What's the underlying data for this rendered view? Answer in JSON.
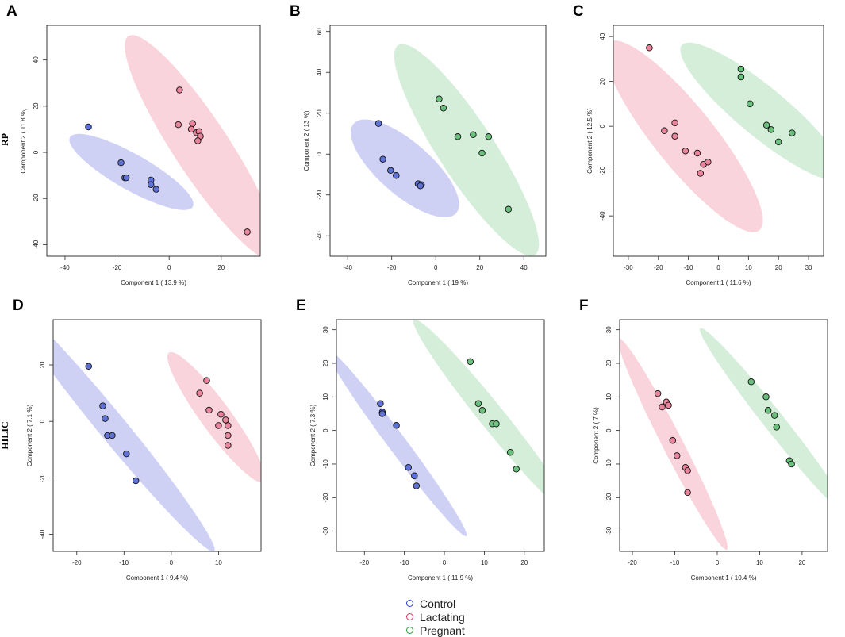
{
  "figure": {
    "row_labels": [
      "RP",
      "HILIC"
    ],
    "legend": [
      {
        "label": "Control",
        "color": "#2f3fd6"
      },
      {
        "label": "Lactating",
        "color": "#e0345e"
      },
      {
        "label": "Pregnant",
        "color": "#2e9e3e"
      }
    ],
    "colors": {
      "control_fill": "#5f73d6",
      "control_ellipse": "#c5c9f2",
      "lactating_fill": "#e8849b",
      "lactating_ellipse": "#f9ccd6",
      "pregnant_fill": "#6cc07d",
      "pregnant_ellipse": "#cdebd2"
    }
  },
  "chart_data": [
    {
      "panel": "A",
      "type": "scatter",
      "xlabel": "Component 1 ( 13.9 %)",
      "ylabel": "Component 2 ( 11.8 %)",
      "xlim": [
        -47,
        35
      ],
      "ylim": [
        -45,
        55
      ],
      "xticks": [
        -40,
        -20,
        0,
        20
      ],
      "yticks": [
        -40,
        -20,
        0,
        20,
        40
      ],
      "series": [
        {
          "name": "Control",
          "ellipse": {
            "a": 28,
            "b": 7.5,
            "angle": -33,
            "cx": -14.5,
            "cy": -8.5
          },
          "points": [
            [
              -31,
              11
            ],
            [
              -18.5,
              -4.5
            ],
            [
              -17,
              -11
            ],
            [
              -16.5,
              -11
            ],
            [
              -7,
              -12
            ],
            [
              -7,
              -14
            ],
            [
              -5,
              -16
            ]
          ]
        },
        {
          "name": "Lactating",
          "ellipse": {
            "a": 56,
            "b": 11,
            "angle": -60,
            "cx": 12.5,
            "cy": 2
          },
          "points": [
            [
              4,
              27
            ],
            [
              3.5,
              12
            ],
            [
              9,
              12.5
            ],
            [
              8.5,
              10
            ],
            [
              10.5,
              8.5
            ],
            [
              11.5,
              9
            ],
            [
              12,
              7
            ],
            [
              11,
              5
            ],
            [
              30,
              -34.5
            ]
          ]
        }
      ]
    },
    {
      "panel": "B",
      "type": "scatter",
      "xlabel": "Component 1 ( 19 %)",
      "ylabel": "Component 2 ( 13 %)",
      "xlim": [
        -48,
        50
      ],
      "ylim": [
        -50,
        63
      ],
      "xticks": [
        -40,
        -20,
        0,
        20,
        40
      ],
      "yticks": [
        -40,
        -20,
        0,
        20,
        40,
        60
      ],
      "series": [
        {
          "name": "Control",
          "ellipse": {
            "a": 32,
            "b": 12.5,
            "angle": -44,
            "cx": -14,
            "cy": -7
          },
          "points": [
            [
              -26,
              15
            ],
            [
              -24,
              -2.5
            ],
            [
              -20.5,
              -8
            ],
            [
              -18,
              -10.5
            ],
            [
              -8,
              -14.5
            ],
            [
              -6.5,
              -15
            ],
            [
              -7,
              -15.5
            ]
          ]
        },
        {
          "name": "Pregnant",
          "ellipse": {
            "a": 60,
            "b": 13,
            "angle": -59,
            "cx": 14,
            "cy": 2
          },
          "points": [
            [
              1.5,
              27
            ],
            [
              3.5,
              22.5
            ],
            [
              10,
              8.5
            ],
            [
              17,
              9.5
            ],
            [
              24,
              8.5
            ],
            [
              21,
              0.5
            ],
            [
              33,
              -27
            ]
          ]
        }
      ]
    },
    {
      "panel": "C",
      "type": "scatter",
      "xlabel": "Component 1 ( 11.6 %)",
      "ylabel": "Component 2 ( 12.5 %)",
      "xlim": [
        -35,
        35
      ],
      "ylim": [
        -58,
        45
      ],
      "xticks": [
        -30,
        -20,
        -10,
        0,
        10,
        20,
        30
      ],
      "yticks": [
        -40,
        -20,
        0,
        20,
        40
      ],
      "series": [
        {
          "name": "Lactating",
          "ellipse": {
            "a": 49,
            "b": 11,
            "angle": -60,
            "cx": -11.5,
            "cy": -4.5
          },
          "points": [
            [
              -23,
              35
            ],
            [
              -18,
              -2
            ],
            [
              -14.5,
              1.5
            ],
            [
              -14.5,
              -4.5
            ],
            [
              -11,
              -11
            ],
            [
              -7,
              -12
            ],
            [
              -5,
              -17
            ],
            [
              -3.5,
              -16
            ],
            [
              -6,
              -21
            ]
          ]
        },
        {
          "name": "Pregnant",
          "ellipse": {
            "a": 40,
            "b": 9.5,
            "angle": -49,
            "cx": 14.5,
            "cy": 6.5
          },
          "points": [
            [
              7.5,
              25.5
            ],
            [
              7.5,
              22
            ],
            [
              10.5,
              10
            ],
            [
              16,
              0.5
            ],
            [
              17.5,
              -1.5
            ],
            [
              24.5,
              -3
            ],
            [
              20,
              -7
            ]
          ]
        }
      ]
    },
    {
      "panel": "D",
      "type": "scatter",
      "xlabel": "Component 1 ( 9.4 %)",
      "ylabel": "Component 2 ( 7.1 %)",
      "xlim": [
        -25,
        19
      ],
      "ylim": [
        -46,
        36
      ],
      "xticks": [
        -20,
        -10,
        0,
        10
      ],
      "yticks": [
        -40,
        -20,
        0,
        20
      ],
      "series": [
        {
          "name": "Control",
          "ellipse": {
            "a": 49,
            "b": 3.4,
            "angle": -64,
            "cx": -12.5,
            "cy": -2
          },
          "points": [
            [
              -17.5,
              19.5
            ],
            [
              -14.5,
              5.5
            ],
            [
              -14,
              1
            ],
            [
              -13.5,
              -5
            ],
            [
              -12.5,
              -5
            ],
            [
              -9.5,
              -11.5
            ],
            [
              -7.5,
              -21
            ]
          ]
        },
        {
          "name": "Lactating",
          "ellipse": {
            "a": 25,
            "b": 3.6,
            "angle": -67,
            "cx": 9.5,
            "cy": 1.5
          },
          "points": [
            [
              7.5,
              14.5
            ],
            [
              6,
              10
            ],
            [
              8,
              4
            ],
            [
              10.5,
              2.5
            ],
            [
              11.5,
              0.5
            ],
            [
              10,
              -1.5
            ],
            [
              12,
              -1.5
            ],
            [
              12,
              -5
            ],
            [
              12,
              -8.5
            ]
          ]
        }
      ]
    },
    {
      "panel": "E",
      "type": "scatter",
      "xlabel": "Component 1 ( 11.9 %)",
      "ylabel": "Component 2 ( 7.3 %)",
      "xlim": [
        -27,
        25
      ],
      "ylim": [
        -36,
        33
      ],
      "xticks": [
        -20,
        -10,
        0,
        10,
        20
      ],
      "yticks": [
        -30,
        -20,
        -10,
        0,
        10,
        20,
        30
      ],
      "series": [
        {
          "name": "Control",
          "ellipse": {
            "a": 33,
            "b": 2.4,
            "angle": -58,
            "cx": -12,
            "cy": -3.5
          },
          "points": [
            [
              -16,
              8
            ],
            [
              -15.5,
              5.5
            ],
            [
              -15.5,
              5
            ],
            [
              -12,
              1.5
            ],
            [
              -9,
              -11
            ],
            [
              -7.5,
              -13.5
            ],
            [
              -7,
              -16.5
            ]
          ]
        },
        {
          "name": "Pregnant",
          "ellipse": {
            "a": 35,
            "b": 3.3,
            "angle": -56,
            "cx": 12,
            "cy": 4
          },
          "points": [
            [
              6.5,
              20.5
            ],
            [
              8.5,
              8
            ],
            [
              9.5,
              6
            ],
            [
              12,
              2
            ],
            [
              13,
              2
            ],
            [
              16.5,
              -6.5
            ],
            [
              18,
              -11.5
            ]
          ]
        }
      ]
    },
    {
      "panel": "F",
      "type": "scatter",
      "xlabel": "Component 1 ( 10.4 %)",
      "ylabel": "Component 2 ( 7 %)",
      "xlim": [
        -23,
        26
      ],
      "ylim": [
        -36,
        33
      ],
      "xticks": [
        -20,
        -10,
        0,
        10,
        20
      ],
      "yticks": [
        -30,
        -20,
        -10,
        0,
        10,
        20,
        30
      ],
      "series": [
        {
          "name": "Lactating",
          "ellipse": {
            "a": 34,
            "b": 2.5,
            "angle": -68,
            "cx": -10.5,
            "cy": -4
          },
          "points": [
            [
              -14,
              11
            ],
            [
              -13,
              7
            ],
            [
              -12,
              8.5
            ],
            [
              -11.5,
              7.5
            ],
            [
              -10.5,
              -3
            ],
            [
              -9.5,
              -7.5
            ],
            [
              -7.5,
              -11
            ],
            [
              -7,
              -12
            ],
            [
              -7,
              -18.5
            ]
          ]
        },
        {
          "name": "Pregnant",
          "ellipse": {
            "a": 33,
            "b": 2.6,
            "angle": -58,
            "cx": 13.5,
            "cy": 2.5
          },
          "points": [
            [
              8,
              14.5
            ],
            [
              11.5,
              10
            ],
            [
              12,
              6
            ],
            [
              13.5,
              4.5
            ],
            [
              14,
              1
            ],
            [
              17,
              -9
            ],
            [
              17.5,
              -10
            ]
          ]
        }
      ]
    }
  ]
}
